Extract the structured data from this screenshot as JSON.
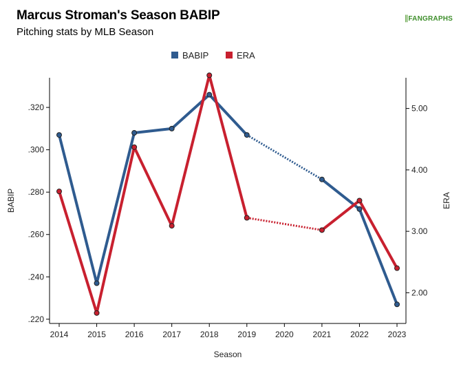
{
  "header": {
    "title": "Marcus Stroman's Season BABIP",
    "subtitle": "Pitching stats by MLB Season",
    "logo_text": "FANGRAPHS"
  },
  "colors": {
    "babip": "#2f5b8f",
    "era": "#c8202f",
    "axis": "#000000"
  },
  "chart_data": {
    "type": "line",
    "title": "Marcus Stroman's Season BABIP",
    "subtitle": "Pitching stats by MLB Season",
    "xlabel": "Season",
    "ylabel": "BABIP",
    "y2label": "ERA",
    "categories": [
      "2014",
      "2015",
      "2016",
      "2017",
      "2018",
      "2019",
      "2020",
      "2021",
      "2022",
      "2023"
    ],
    "ylim": [
      0.218,
      0.334
    ],
    "y2lim": [
      1.5,
      5.5
    ],
    "y_ticks": [
      ".220",
      ".240",
      ".260",
      ".280",
      ".300",
      ".320"
    ],
    "y_tick_values": [
      0.22,
      0.24,
      0.26,
      0.28,
      0.3,
      0.32
    ],
    "y2_ticks": [
      "2.00",
      "3.00",
      "4.00",
      "5.00"
    ],
    "y2_tick_values": [
      2.0,
      3.0,
      4.0,
      5.0
    ],
    "legend_position": "top-center",
    "series": [
      {
        "name": "BABIP",
        "axis": "left",
        "values": [
          0.307,
          0.237,
          0.308,
          0.31,
          0.326,
          0.307,
          null,
          0.286,
          0.272,
          0.227
        ]
      },
      {
        "name": "ERA",
        "axis": "right",
        "values": [
          3.65,
          1.67,
          4.37,
          3.09,
          5.54,
          3.22,
          null,
          3.02,
          3.5,
          2.4
        ]
      }
    ]
  }
}
